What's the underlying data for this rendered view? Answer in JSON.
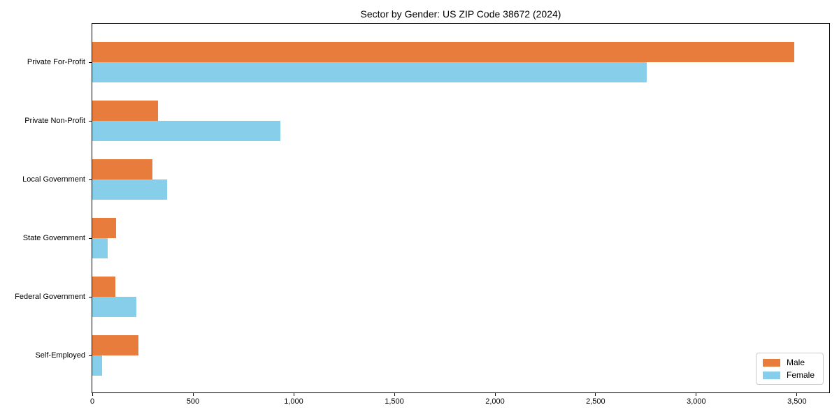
{
  "chart_data": {
    "type": "bar",
    "orientation": "horizontal",
    "title": "Sector by Gender: US ZIP Code 38672 (2024)",
    "xlabel": "",
    "ylabel": "",
    "categories": [
      "Private For-Profit",
      "Private Non-Profit",
      "Local Government",
      "State Government",
      "Federal Government",
      "Self-Employed"
    ],
    "series": [
      {
        "name": "Male",
        "color": "#E87C3C",
        "values": [
          3485,
          325,
          300,
          117,
          115,
          228
        ]
      },
      {
        "name": "Female",
        "color": "#87CEEB",
        "values": [
          2755,
          935,
          370,
          75,
          220,
          48
        ]
      }
    ],
    "xlim": [
      0,
      3660
    ],
    "xticks": {
      "values": [
        0,
        500,
        1000,
        1500,
        2000,
        2500,
        3000,
        3500
      ],
      "labels": [
        "0",
        "500",
        "1,000",
        "1,500",
        "2,000",
        "2,500",
        "3,000",
        "3,500"
      ]
    },
    "grid": false,
    "legend": {
      "position": "lower right"
    }
  }
}
